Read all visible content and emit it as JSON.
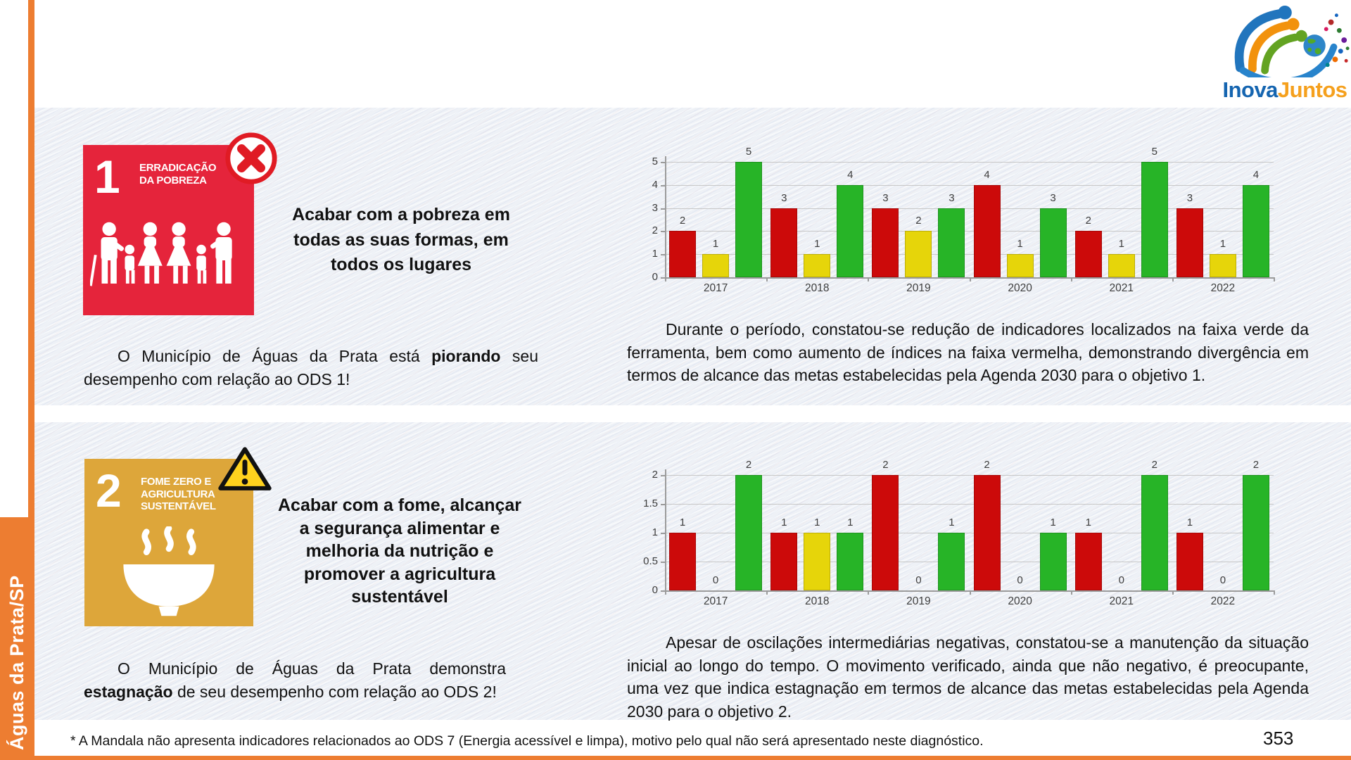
{
  "page": {
    "sidebar_label": "Águas da Prata/SP",
    "footnote": "* A Mandala não apresenta indicadores relacionados ao ODS 7 (Energia acessível e limpa), motivo pelo qual não será apresentado neste diagnóstico.",
    "page_number": "353"
  },
  "logo": {
    "text_primary": "Inova",
    "text_secondary": "Juntos"
  },
  "colors": {
    "sidebar_orange": "#ED7D31",
    "ods1_red": "#E5243B",
    "ods2_gold": "#DDA63A",
    "bar_red": "#CC0A0A",
    "bar_yellow": "#E6D50A",
    "bar_green": "#27B427",
    "logo_blue": "#1565B0",
    "logo_orange": "#F5A01D"
  },
  "sections": [
    {
      "goal_number": "1",
      "goal_title_line1": "ERRADICAÇÃO",
      "goal_title_line2": "DA POBREZA",
      "status_icon": "red-cross-badge",
      "objective": "Acabar com a pobreza em todas as suas formas, em todos os lugares",
      "statement": {
        "prefix": "O Município de Águas da Prata está ",
        "bold": "piorando",
        "suffix": " seu desempenho com relação ao ODS 1!"
      },
      "analysis": "Durante o período, constatou-se redução de indicadores localizados na faixa verde da ferramenta, bem como aumento de índices na faixa vermelha, demonstrando divergência em termos de alcance das metas estabelecidas pela Agenda 2030 para o objetivo 1."
    },
    {
      "goal_number": "2",
      "goal_title_line1": "FOME ZERO E",
      "goal_title_line2": "AGRICULTURA",
      "goal_title_line3": "SUSTENTÁVEL",
      "status_icon": "warning-triangle-badge",
      "objective": "Acabar com a fome, alcançar a segurança alimentar e melhoria da nutrição e promover a agricultura sustentável",
      "statement": {
        "prefix": "O Município de Águas da Prata demonstra ",
        "bold": "estagnação",
        "suffix": " de seu desempenho com relação ao ODS 2!"
      },
      "analysis": "Apesar de oscilações intermediárias negativas, constatou-se a manutenção da situação inicial ao longo do tempo. O movimento verificado, ainda que não negativo, é preocupante, uma vez que indica estagnação em termos de alcance das metas estabelecidas pela Agenda 2030 para o objetivo 2."
    }
  ],
  "chart_data": [
    {
      "type": "bar",
      "title": "",
      "categories": [
        "2017",
        "2018",
        "2019",
        "2020",
        "2021",
        "2022"
      ],
      "series": [
        {
          "name": "faixa vermelha",
          "color": "#CC0A0A",
          "values": [
            2,
            3,
            3,
            4,
            2,
            3
          ]
        },
        {
          "name": "faixa amarela",
          "color": "#E6D50A",
          "values": [
            1,
            1,
            2,
            1,
            1,
            1
          ]
        },
        {
          "name": "faixa verde",
          "color": "#27B427",
          "values": [
            5,
            4,
            3,
            3,
            5,
            4
          ]
        }
      ],
      "ylim": [
        0,
        5
      ],
      "yticks": [
        0,
        1,
        2,
        3,
        4,
        5
      ],
      "grid": true,
      "data_labels": true,
      "legend": "none"
    },
    {
      "type": "bar",
      "title": "",
      "categories": [
        "2017",
        "2018",
        "2019",
        "2020",
        "2021",
        "2022"
      ],
      "series": [
        {
          "name": "faixa vermelha",
          "color": "#CC0A0A",
          "values": [
            1,
            1,
            2,
            2,
            1,
            1
          ]
        },
        {
          "name": "faixa amarela",
          "color": "#E6D50A",
          "values": [
            0,
            1,
            0,
            0,
            0,
            0
          ]
        },
        {
          "name": "faixa verde",
          "color": "#27B427",
          "values": [
            2,
            1,
            1,
            1,
            2,
            2
          ]
        }
      ],
      "ylim": [
        0,
        2
      ],
      "yticks": [
        0,
        0.5,
        1,
        1.5,
        2
      ],
      "grid": true,
      "data_labels": true,
      "legend": "none"
    }
  ]
}
